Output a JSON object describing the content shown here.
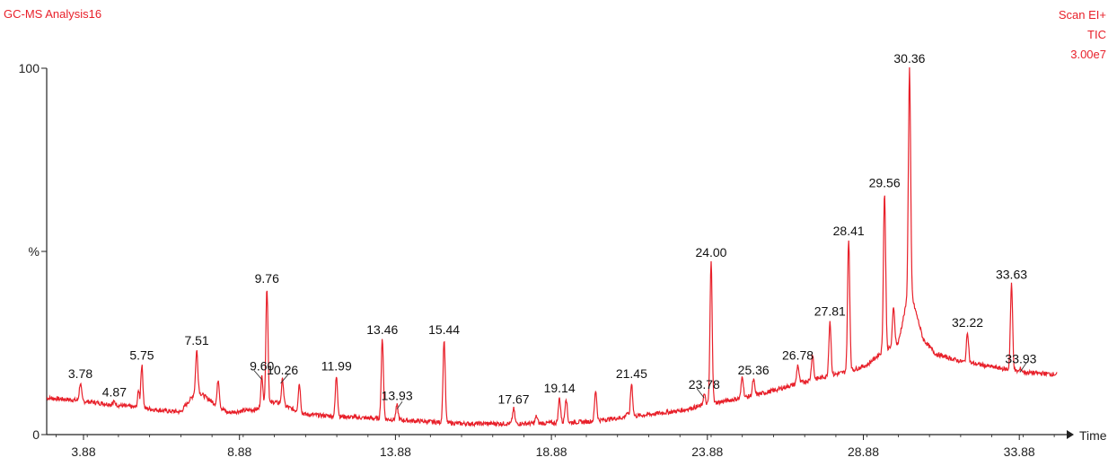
{
  "header": {
    "title": "GC-MS Analysis16",
    "scan_mode": "Scan EI+",
    "trace": "TIC",
    "scale": "3.00e7"
  },
  "chart_data": {
    "type": "line",
    "title": "GC-MS Analysis16",
    "xlabel": "Time",
    "ylabel": "%",
    "xlim": [
      2.7,
      35.4
    ],
    "ylim": [
      0,
      100
    ],
    "xticks": [
      3.88,
      8.88,
      13.88,
      18.88,
      23.88,
      28.88,
      33.88
    ],
    "yticks": [
      {
        "value": 0,
        "label": "0"
      },
      {
        "value": 50,
        "label": "%"
      },
      {
        "value": 100,
        "label": "100"
      }
    ],
    "line_color": "#e8202a",
    "grid": false,
    "peaks": [
      {
        "label": "3.78",
        "x": 3.78,
        "y": 14
      },
      {
        "label": "4.87",
        "x": 4.87,
        "y": 9
      },
      {
        "label": "5.75",
        "x": 5.75,
        "y": 19
      },
      {
        "label": "7.51",
        "x": 7.51,
        "y": 23
      },
      {
        "label": "9.60",
        "x": 9.6,
        "y": 16
      },
      {
        "label": "9.76",
        "x": 9.76,
        "y": 40
      },
      {
        "label": "10.26",
        "x": 10.26,
        "y": 15
      },
      {
        "label": "11.99",
        "x": 11.99,
        "y": 16
      },
      {
        "label": "13.46",
        "x": 13.46,
        "y": 26
      },
      {
        "label": "13.93",
        "x": 13.93,
        "y": 8
      },
      {
        "label": "15.44",
        "x": 15.44,
        "y": 26
      },
      {
        "label": "17.67",
        "x": 17.67,
        "y": 7
      },
      {
        "label": "19.14",
        "x": 19.14,
        "y": 10
      },
      {
        "label": "21.45",
        "x": 21.45,
        "y": 14
      },
      {
        "label": "23.78",
        "x": 23.78,
        "y": 11
      },
      {
        "label": "24.00",
        "x": 24.0,
        "y": 47
      },
      {
        "label": "25.36",
        "x": 25.36,
        "y": 15
      },
      {
        "label": "26.78",
        "x": 26.78,
        "y": 19
      },
      {
        "label": "27.81",
        "x": 27.81,
        "y": 31
      },
      {
        "label": "28.41",
        "x": 28.41,
        "y": 53
      },
      {
        "label": "29.56",
        "x": 29.56,
        "y": 66
      },
      {
        "label": "30.36",
        "x": 30.36,
        "y": 100
      },
      {
        "label": "32.22",
        "x": 32.22,
        "y": 28
      },
      {
        "label": "33.63",
        "x": 33.63,
        "y": 41
      },
      {
        "label": "33.93",
        "x": 33.93,
        "y": 18
      }
    ],
    "extra_peaks": [
      {
        "x": 5.65,
        "y": 12
      },
      {
        "x": 8.2,
        "y": 15
      },
      {
        "x": 10.8,
        "y": 14
      },
      {
        "x": 12.4,
        "y": 4
      },
      {
        "x": 18.4,
        "y": 5
      },
      {
        "x": 19.35,
        "y": 10
      },
      {
        "x": 20.3,
        "y": 12
      },
      {
        "x": 21.3,
        "y": 6
      },
      {
        "x": 25.0,
        "y": 16
      },
      {
        "x": 27.25,
        "y": 22
      },
      {
        "x": 29.85,
        "y": 35
      },
      {
        "x": 31.85,
        "y": 19
      }
    ],
    "baseline": [
      [
        2.7,
        10
      ],
      [
        3.5,
        9.5
      ],
      [
        4.5,
        8.5
      ],
      [
        5.5,
        7.5
      ],
      [
        6.5,
        6.5
      ],
      [
        7.0,
        6.2
      ],
      [
        7.51,
        12
      ],
      [
        8.0,
        9
      ],
      [
        8.5,
        6
      ],
      [
        9.5,
        7
      ],
      [
        10.0,
        9
      ],
      [
        11.0,
        5.5
      ],
      [
        12.0,
        5
      ],
      [
        13.0,
        4.5
      ],
      [
        14.0,
        4
      ],
      [
        15.0,
        3.5
      ],
      [
        16.0,
        3
      ],
      [
        17.0,
        3
      ],
      [
        18.0,
        3
      ],
      [
        19.0,
        3.2
      ],
      [
        20.0,
        3.5
      ],
      [
        21.0,
        4.5
      ],
      [
        22.0,
        5.5
      ],
      [
        23.0,
        6.5
      ],
      [
        24.0,
        8.5
      ],
      [
        25.0,
        10
      ],
      [
        26.0,
        12
      ],
      [
        27.0,
        14.5
      ],
      [
        28.0,
        16.5
      ],
      [
        28.5,
        17.5
      ],
      [
        29.0,
        19
      ],
      [
        29.4,
        22
      ],
      [
        30.0,
        25
      ],
      [
        30.36,
        40
      ],
      [
        30.8,
        26
      ],
      [
        31.2,
        22
      ],
      [
        32.0,
        20
      ],
      [
        33.0,
        18.5
      ],
      [
        34.0,
        17
      ],
      [
        35.0,
        16.5
      ]
    ],
    "leader_lines": [
      {
        "label": "9.60",
        "from": [
          9.35,
          17.5
        ],
        "to": [
          9.6,
          15
        ]
      },
      {
        "label": "10.26",
        "from": [
          10.45,
          16.5
        ],
        "to": [
          10.2,
          14
        ]
      },
      {
        "label": "13.93",
        "from": [
          14.1,
          9
        ],
        "to": [
          13.93,
          7
        ]
      },
      {
        "label": "23.78",
        "from": [
          23.55,
          12.5
        ],
        "to": [
          23.78,
          10
        ]
      },
      {
        "label": "33.93",
        "from": [
          34.1,
          19.5
        ],
        "to": [
          33.9,
          17
        ]
      }
    ]
  }
}
